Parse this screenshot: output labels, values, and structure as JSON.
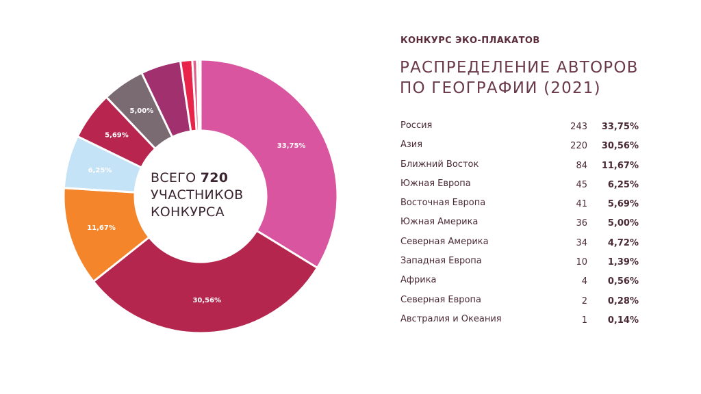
{
  "header": {
    "kicker": "КОНКУРС ЭКО-ПЛАКАТОВ",
    "title_line1": "РАСПРЕДЕЛЕНИЕ АВТОРОВ",
    "title_line2": "ПО ГЕОГРАФИИ (2021)"
  },
  "center": {
    "prefix": "ВСЕГО ",
    "total": "720",
    "line2": "УЧАСТНИКОВ",
    "line3": "КОНКУРСА"
  },
  "chart_data": {
    "type": "pie",
    "total": 720,
    "categories": [
      "Россия",
      "Азия",
      "Ближний Восток",
      "Южная Европа",
      "Восточная Европа",
      "Южная Америка",
      "Северная Америка",
      "Западная Европа",
      "Африка",
      "Северная Европа",
      "Австралия и Океания"
    ],
    "values": [
      243,
      220,
      84,
      45,
      41,
      36,
      34,
      10,
      4,
      2,
      1
    ],
    "percents": [
      "33,75%",
      "30,56%",
      "11,67%",
      "6,25%",
      "5,69%",
      "5,00%",
      "4,72%",
      "1,39%",
      "0,56%",
      "0,28%",
      "0,14%"
    ],
    "slice_labels": [
      "33,75%",
      "30,56%",
      "11,67%",
      "6,25%",
      "5,69%",
      "5,00%",
      "",
      "",
      "",
      "",
      ""
    ],
    "colors": [
      "#d9559f",
      "#b5264e",
      "#f5852a",
      "#c5e3f6",
      "#b8264f",
      "#7a6a72",
      "#a0306e",
      "#e8244a",
      "#e0608a",
      "#c9a2b0",
      "#e6e0e2"
    ],
    "label_colors": [
      "#ffffff",
      "#ffffff",
      "#ffffff",
      "#ffffff",
      "#ffffff",
      "#ffffff",
      "#ffffff",
      "#ffffff",
      "#ffffff",
      "#ffffff",
      "#ffffff"
    ]
  }
}
